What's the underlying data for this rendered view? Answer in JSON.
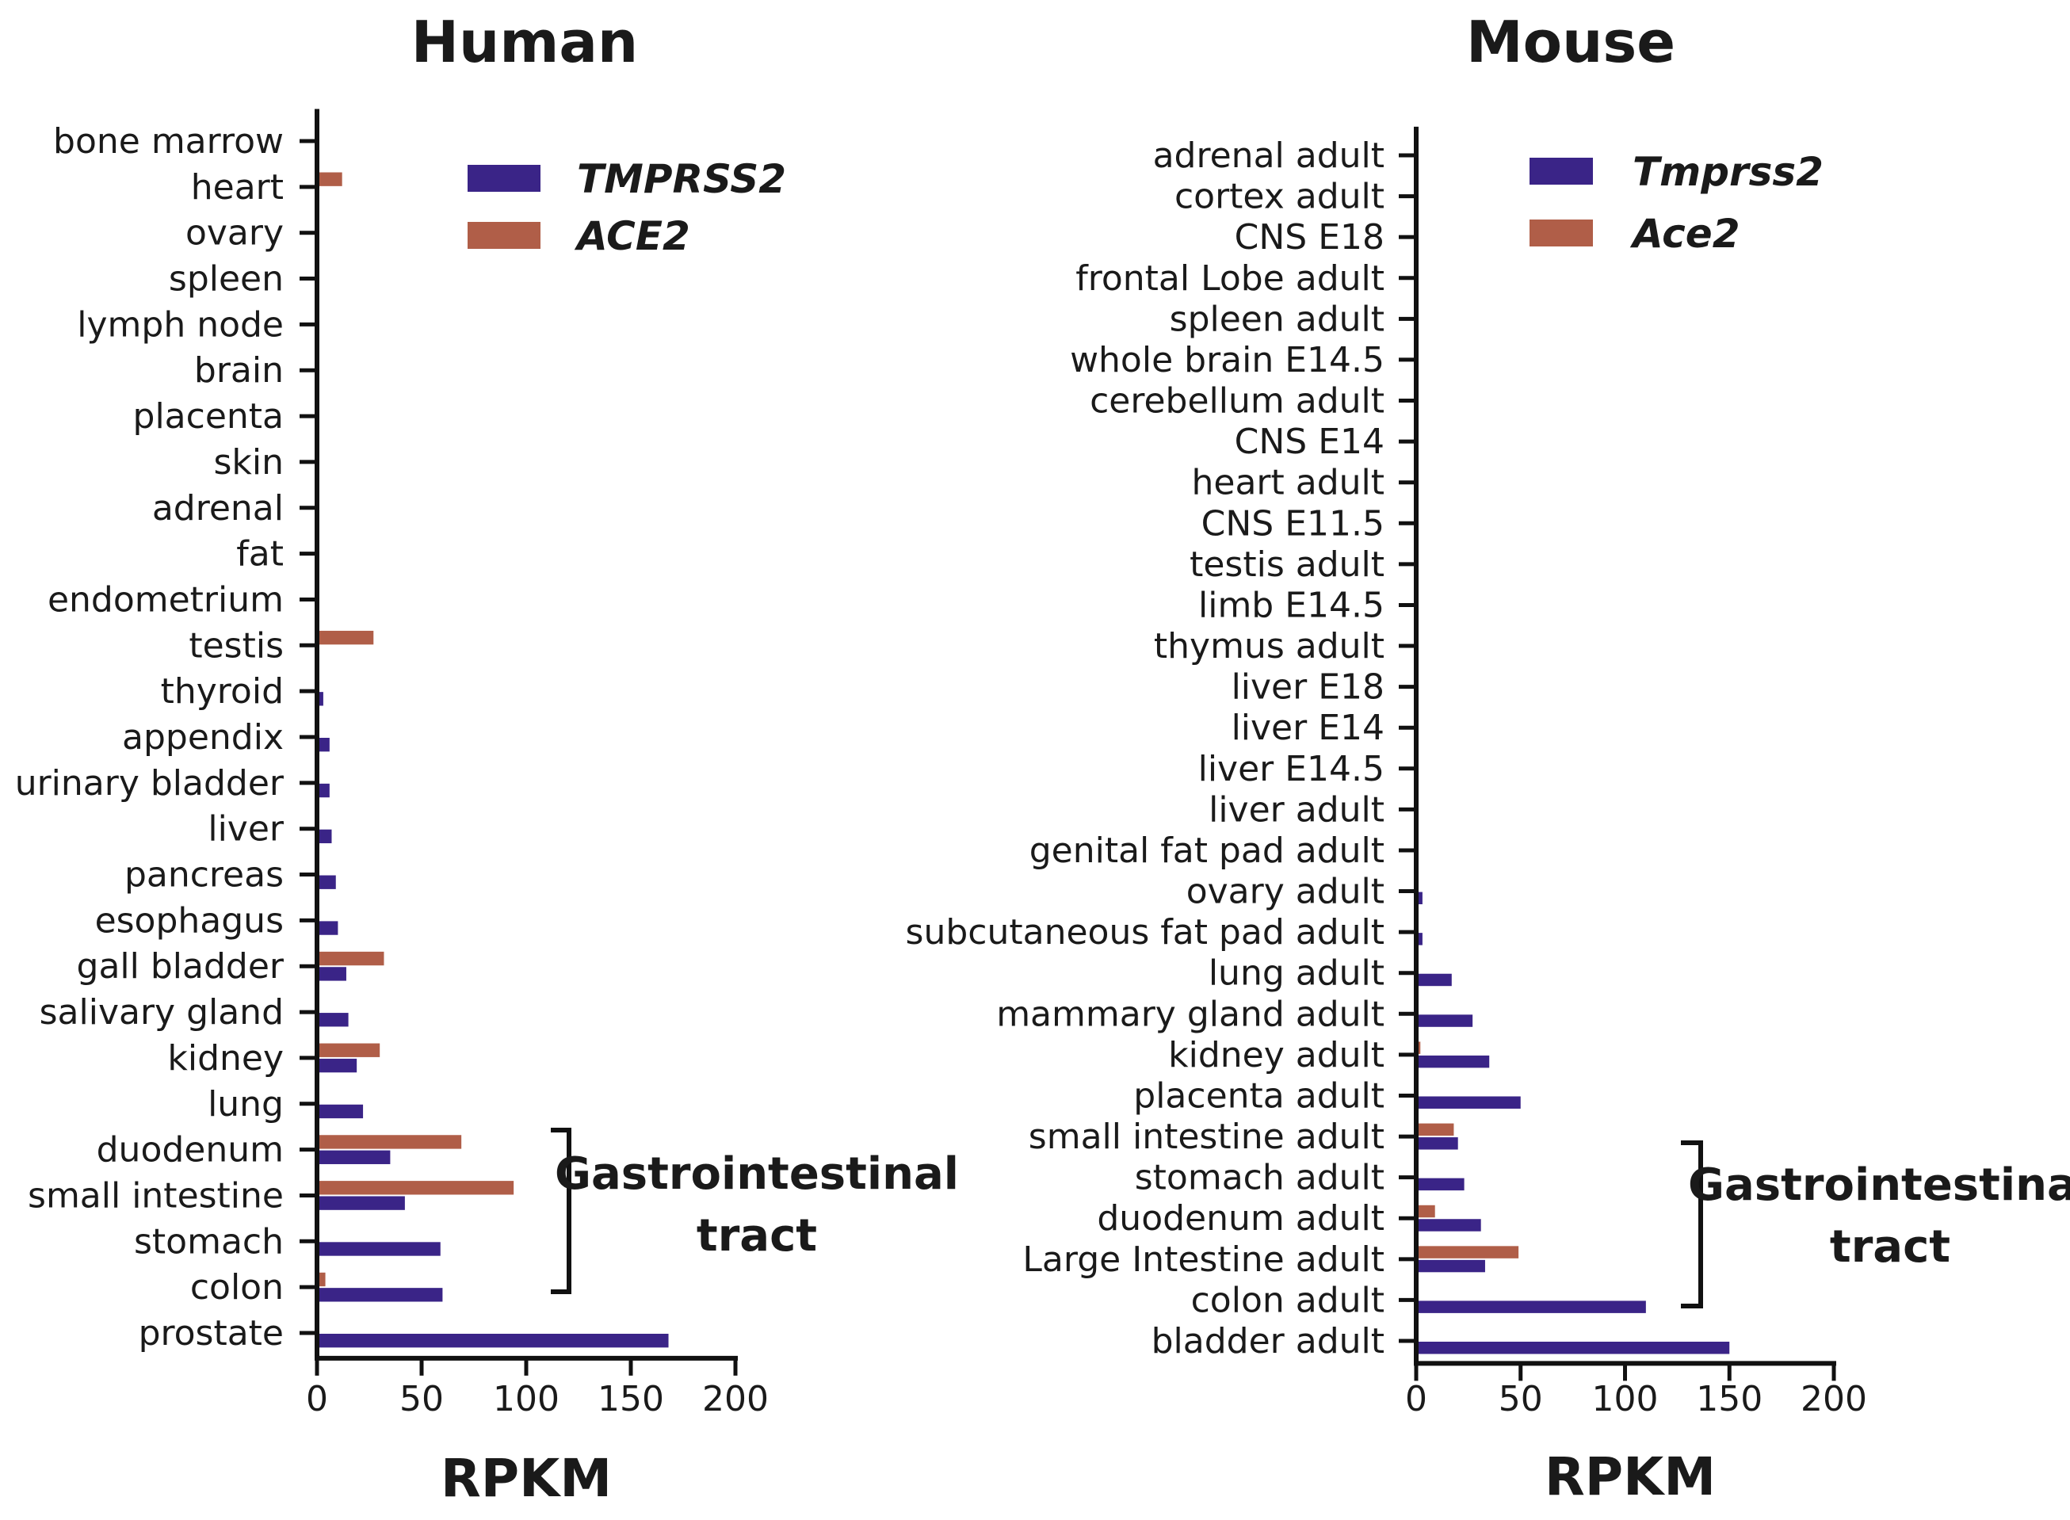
{
  "colors": {
    "tmprss2": "#3a2487",
    "ace2": "#b05e48"
  },
  "chart_data": [
    {
      "type": "bar",
      "orientation": "horizontal",
      "title": "Human",
      "xlabel": "RPKM",
      "ylabel": "",
      "xlim": [
        0,
        200
      ],
      "xticks": [
        0,
        50,
        100,
        150,
        200
      ],
      "categories": [
        "bone marrow",
        "heart",
        "ovary",
        "spleen",
        "lymph node",
        "brain",
        "placenta",
        "skin",
        "adrenal",
        "fat",
        "endometrium",
        "testis",
        "thyroid",
        "appendix",
        "urinary bladder",
        "liver",
        "pancreas",
        "esophagus",
        "gall bladder",
        "salivary gland",
        "kidney",
        "lung",
        "duodenum",
        "small intestine",
        "stomach",
        "colon",
        "prostate"
      ],
      "series": [
        {
          "name": "TMPRSS2",
          "values": [
            0,
            0,
            0,
            0,
            0,
            0,
            0,
            0,
            0,
            0,
            0,
            0,
            3,
            6,
            6,
            7,
            9,
            10,
            14,
            15,
            19,
            22,
            35,
            42,
            59,
            60,
            168
          ]
        },
        {
          "name": "ACE2",
          "values": [
            0,
            12,
            0,
            0,
            0,
            0,
            0,
            0,
            0,
            0,
            0,
            27,
            0,
            0,
            0,
            0,
            0,
            0,
            32,
            0,
            30,
            0,
            69,
            94,
            0,
            4,
            0
          ]
        }
      ],
      "legend": [
        "TMPRSS2",
        "ACE2"
      ],
      "bracket": {
        "label_line1": "Gastrointestinal",
        "label_line2": "tract",
        "from": "duodenum",
        "to": "colon"
      }
    },
    {
      "type": "bar",
      "orientation": "horizontal",
      "title": "Mouse",
      "xlabel": "RPKM",
      "ylabel": "",
      "xlim": [
        0,
        200
      ],
      "xticks": [
        0,
        50,
        100,
        150,
        200
      ],
      "categories": [
        "adrenal adult",
        "cortex adult",
        "CNS E18",
        "frontal Lobe adult",
        "spleen adult",
        "whole brain E14.5",
        "cerebellum adult",
        "CNS E14",
        "heart adult",
        "CNS E11.5",
        "testis adult",
        "limb E14.5",
        "thymus adult",
        "liver E18",
        "liver E14",
        "liver E14.5",
        "liver adult",
        "genital fat pad adult",
        "ovary adult",
        "subcutaneous fat pad adult",
        "lung adult",
        "mammary gland adult",
        "kidney adult",
        "placenta adult",
        "small intestine adult",
        "stomach adult",
        "duodenum adult",
        "Large Intestine adult",
        "colon adult",
        "bladder adult"
      ],
      "series": [
        {
          "name": "Tmprss2",
          "values": [
            0,
            0,
            0,
            0,
            0,
            0,
            0,
            0,
            0,
            0,
            0,
            0,
            0,
            0,
            0,
            0,
            0,
            1,
            3,
            3,
            17,
            27,
            35,
            50,
            20,
            23,
            31,
            33,
            110,
            150
          ]
        },
        {
          "name": "Ace2",
          "values": [
            0,
            0,
            0,
            0,
            0,
            0,
            0,
            0,
            0,
            0,
            0,
            0,
            0,
            0,
            0,
            0,
            0,
            0,
            0,
            0,
            0,
            0,
            2,
            0,
            18,
            0,
            9,
            49,
            0,
            0
          ]
        }
      ],
      "legend": [
        "Tmprss2",
        "Ace2"
      ],
      "bracket": {
        "label_line1": "Gastrointestinal",
        "label_line2": "tract",
        "from": "small intestine adult",
        "to": "colon adult"
      }
    }
  ]
}
